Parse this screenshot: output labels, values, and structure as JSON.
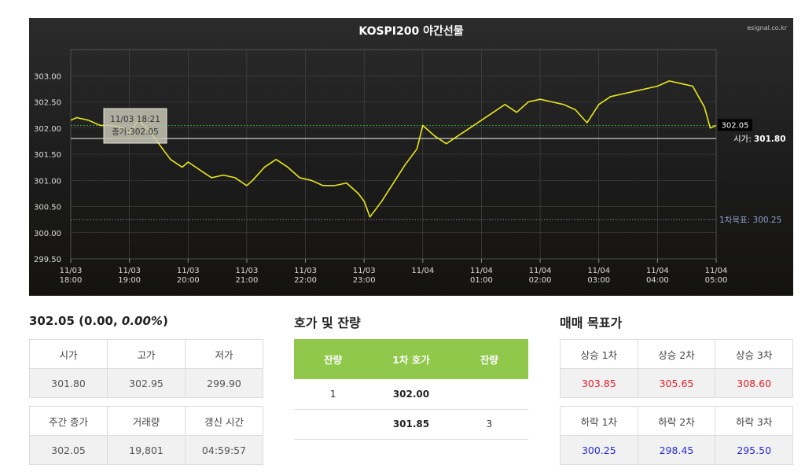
{
  "chart_data": {
    "type": "line",
    "title": "KOSPI200 야간선물",
    "watermark": "esignal.co.kr",
    "x_ticks": [
      {
        "day": "11/03",
        "time": "18:00"
      },
      {
        "day": "11/03",
        "time": "19:00"
      },
      {
        "day": "11/03",
        "time": "20:00"
      },
      {
        "day": "11/03",
        "time": "21:00"
      },
      {
        "day": "11/03",
        "time": "22:00"
      },
      {
        "day": "11/03",
        "time": "23:00"
      },
      {
        "day": "11/04",
        "time": ""
      },
      {
        "day": "11/04",
        "time": "01:00"
      },
      {
        "day": "11/04",
        "time": "02:00"
      },
      {
        "day": "11/04",
        "time": "03:00"
      },
      {
        "day": "11/04",
        "time": "04:00"
      },
      {
        "day": "11/04",
        "time": "05:00"
      }
    ],
    "y_ticks": [
      "303.00",
      "302.50",
      "302.00",
      "301.50",
      "301.00",
      "300.50",
      "300.00",
      "299.50"
    ],
    "xlim": [
      0,
      11
    ],
    "ylim": [
      299.5,
      303.5
    ],
    "series": [
      {
        "color": "#e8e81c",
        "x": [
          0,
          0.1,
          0.3,
          0.5,
          0.7,
          0.9,
          1.0,
          1.15,
          1.3,
          1.5,
          1.7,
          1.9,
          2.0,
          2.2,
          2.4,
          2.6,
          2.8,
          3.0,
          3.1,
          3.3,
          3.5,
          3.7,
          3.9,
          4.1,
          4.3,
          4.5,
          4.7,
          4.9,
          5.0,
          5.1,
          5.3,
          5.5,
          5.7,
          5.9,
          6.0,
          6.2,
          6.4,
          6.6,
          6.8,
          7.0,
          7.2,
          7.4,
          7.6,
          7.8,
          8.0,
          8.2,
          8.4,
          8.6,
          8.8,
          9.0,
          9.2,
          9.4,
          9.6,
          9.8,
          10.0,
          10.2,
          10.4,
          10.6,
          10.8,
          10.9,
          11.0
        ],
        "y": [
          302.15,
          302.2,
          302.15,
          302.05,
          302.05,
          302.0,
          301.9,
          302.15,
          302.0,
          301.7,
          301.4,
          301.25,
          301.35,
          301.2,
          301.05,
          301.1,
          301.05,
          300.9,
          301.0,
          301.25,
          301.4,
          301.25,
          301.05,
          301.0,
          300.9,
          300.9,
          300.95,
          300.75,
          300.6,
          300.3,
          300.6,
          300.95,
          301.3,
          301.6,
          302.05,
          301.85,
          301.7,
          301.85,
          302.0,
          302.15,
          302.3,
          302.45,
          302.3,
          302.5,
          302.55,
          302.5,
          302.45,
          302.35,
          302.1,
          302.45,
          302.6,
          302.65,
          302.7,
          302.75,
          302.8,
          302.9,
          302.85,
          302.8,
          302.4,
          302.0,
          302.05
        ]
      }
    ],
    "open_line": {
      "label": "시가:",
      "value": "301.80",
      "y": 301.8
    },
    "last_price": {
      "value": "302.05",
      "y": 302.05
    },
    "target_line": {
      "label": "1차목표:",
      "value": "300.25",
      "y": 300.25
    },
    "tooltip": {
      "time": "11/03 18:21",
      "text": "종가:302.05"
    }
  },
  "summary": {
    "price": "302.05",
    "change_open": " (0.00, ",
    "change_pct": "0.00%",
    "change_close": ")"
  },
  "quote_table_1": {
    "headers": [
      "시가",
      "고가",
      "저가"
    ],
    "values": [
      "301.80",
      "302.95",
      "299.90"
    ]
  },
  "quote_table_2": {
    "headers": [
      "주간 종가",
      "거래량",
      "갱신 시간"
    ],
    "values": [
      "302.05",
      "19,801",
      "04:59:57"
    ]
  },
  "orderbook": {
    "title": "호가 및 잔량",
    "headers": [
      "잔량",
      "1차 호가",
      "잔량"
    ],
    "rows": [
      {
        "left": "1",
        "price": "302.00",
        "right": ""
      },
      {
        "left": "",
        "price": "301.85",
        "right": "3"
      }
    ]
  },
  "targets": {
    "title": "매매 목표가",
    "up_headers": [
      "상승 1차",
      "상승 2차",
      "상승 3차"
    ],
    "up_values": [
      "303.85",
      "305.65",
      "308.60"
    ],
    "down_headers": [
      "하락 1차",
      "하락 2차",
      "하락 3차"
    ],
    "down_values": [
      "300.25",
      "298.45",
      "295.50"
    ],
    "up_color": "#e5202a",
    "down_color": "#2a2ad8"
  }
}
